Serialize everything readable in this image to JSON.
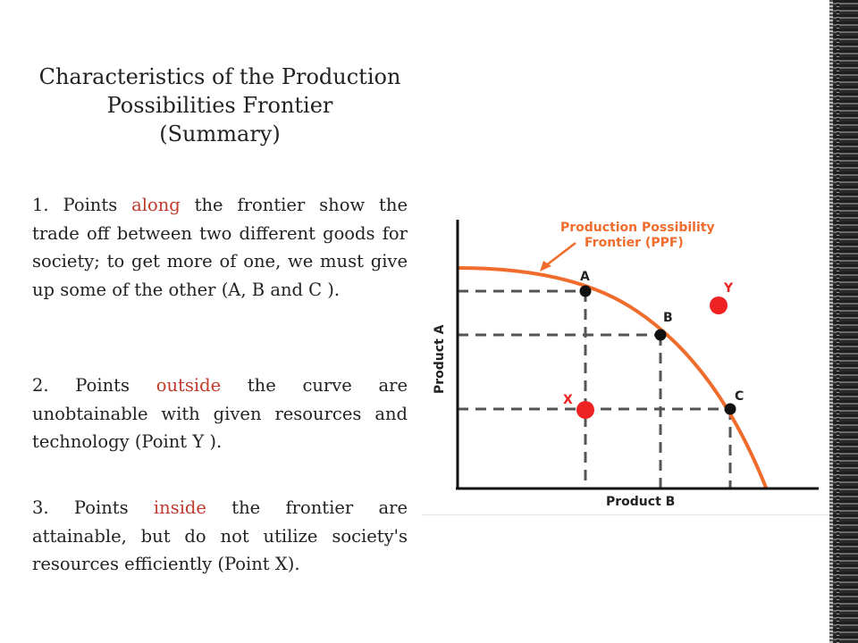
{
  "slide": {
    "title_lines": [
      "Characteristics of the Production",
      "Possibilities Frontier",
      "(Summary)"
    ],
    "paragraphs": [
      {
        "prefix": "1. Points ",
        "keyword": "along",
        "rest": " the frontier show the trade off between two different goods for society; to get more of one, we must give up some of the other (A, B and C )."
      },
      {
        "prefix": "2. Points ",
        "keyword": "outside",
        "rest": " the curve are unobtainable with given resources and technology (Point Y )."
      },
      {
        "prefix": "3. Points ",
        "keyword": "inside",
        "rest": " the frontier are attainable, but do not utilize society's resources efficiently (Point X)."
      }
    ]
  },
  "graph": {
    "curve_label_line1": "Production Possibility",
    "curve_label_line2": "Frontier (PPF)",
    "x_axis_label": "Product B",
    "y_axis_label": "Product A",
    "points": {
      "A": "A",
      "B": "B",
      "C": "C",
      "X": "X",
      "Y": "Y"
    },
    "colors": {
      "curve": "#ef6c2c",
      "point_off": "#ee2222",
      "point_on": "#111111",
      "axis": "#111111",
      "dash": "#555555"
    }
  }
}
